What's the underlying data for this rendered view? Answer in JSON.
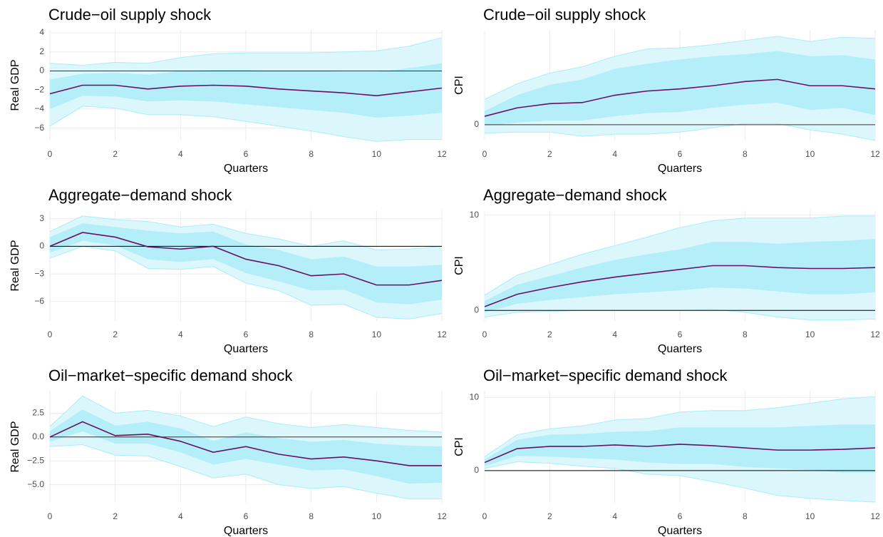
{
  "chart_data": [
    {
      "type": "line",
      "title": "Crude−oil supply shock",
      "xlabel": "Quarters",
      "ylabel": "Real GDP",
      "x": [
        0,
        1,
        2,
        3,
        4,
        5,
        6,
        7,
        8,
        9,
        10,
        11,
        12
      ],
      "xlim": [
        0,
        12
      ],
      "xticks": [
        0,
        2,
        4,
        6,
        8,
        10,
        12
      ],
      "ylim": [
        -7.3,
        4.3
      ],
      "yticks": [
        {
          "value": -6,
          "label": "−6"
        },
        {
          "value": -4,
          "label": "−4"
        },
        {
          "value": -2,
          "label": "−2"
        },
        0,
        2,
        4
      ],
      "grid": true,
      "hline": {
        "value": 0,
        "color": "#333333"
      },
      "outer_band": {
        "color": "#dcf7fc",
        "edge_color": "#a9edf7",
        "upper": [
          0.8,
          0.6,
          0.9,
          0.8,
          1.4,
          1.8,
          1.9,
          1.9,
          1.9,
          2.0,
          2.1,
          2.6,
          3.5
        ],
        "lower": [
          -5.8,
          -3.7,
          -3.9,
          -4.6,
          -4.6,
          -4.8,
          -5.3,
          -5.8,
          -6.3,
          -6.9,
          -7.4,
          -7.2,
          -7.2
        ]
      },
      "inner_band": {
        "color": "#b4eef9",
        "upper": [
          -0.9,
          -0.3,
          -0.2,
          -0.4,
          0,
          0.1,
          0.1,
          0,
          0,
          -0.1,
          -0.1,
          0.3,
          0.8
        ],
        "lower": [
          -4.0,
          -2.6,
          -2.7,
          -3.2,
          -3.1,
          -3.2,
          -3.5,
          -3.8,
          -4.1,
          -4.4,
          -4.9,
          -4.7,
          -4.4
        ]
      },
      "median": {
        "color": "#6b0f5f",
        "values": [
          -2.4,
          -1.5,
          -1.5,
          -1.9,
          -1.6,
          -1.5,
          -1.6,
          -1.9,
          -2.1,
          -2.3,
          -2.6,
          -2.2,
          -1.8
        ]
      }
    },
    {
      "type": "line",
      "title": "Crude−oil supply shock",
      "xlabel": "Quarters",
      "ylabel": "CPI",
      "x": [
        0,
        1,
        2,
        3,
        4,
        5,
        6,
        7,
        8,
        9,
        10,
        11,
        12
      ],
      "xlim": [
        0,
        12
      ],
      "xticks": [
        0,
        2,
        4,
        6,
        8,
        10,
        12
      ],
      "ylim": [
        -0.15,
        0.9
      ],
      "yticks": [
        0
      ],
      "grid": true,
      "hline": {
        "value": 0,
        "color": "#333333"
      },
      "outer_band": {
        "color": "#dcf7fc",
        "edge_color": "#a9edf7",
        "upper": [
          0.24,
          0.39,
          0.49,
          0.55,
          0.65,
          0.72,
          0.73,
          0.76,
          0.8,
          0.84,
          0.79,
          0.83,
          0.82
        ],
        "lower": [
          -0.08,
          -0.07,
          -0.07,
          -0.11,
          -0.09,
          -0.09,
          -0.07,
          -0.03,
          0.01,
          0.01,
          -0.05,
          -0.09,
          -0.15
        ]
      },
      "inner_band": {
        "color": "#b4eef9",
        "upper": [
          0.13,
          0.28,
          0.38,
          0.43,
          0.53,
          0.58,
          0.62,
          0.65,
          0.67,
          0.7,
          0.65,
          0.66,
          0.62
        ],
        "lower": [
          -0.01,
          0.02,
          0.04,
          0.04,
          0.08,
          0.11,
          0.12,
          0.16,
          0.19,
          0.21,
          0.14,
          0.16,
          0.09
        ]
      },
      "median": {
        "color": "#6b0f5f",
        "values": [
          0.08,
          0.16,
          0.2,
          0.21,
          0.28,
          0.32,
          0.34,
          0.37,
          0.41,
          0.43,
          0.37,
          0.37,
          0.34
        ]
      }
    },
    {
      "type": "line",
      "title": "Aggregate−demand shock",
      "xlabel": "Quarters",
      "ylabel": "Real GDP",
      "x": [
        0,
        1,
        2,
        3,
        4,
        5,
        6,
        7,
        8,
        9,
        10,
        11,
        12
      ],
      "xlim": [
        0,
        12
      ],
      "xticks": [
        0,
        2,
        4,
        6,
        8,
        10,
        12
      ],
      "ylim": [
        -8.1,
        3.9
      ],
      "yticks": [
        {
          "value": -6,
          "label": "−6"
        },
        {
          "value": -3,
          "label": "−3"
        },
        0,
        3
      ],
      "grid": true,
      "hline": {
        "value": 0,
        "color": "#000000"
      },
      "outer_band": {
        "color": "#dcf7fc",
        "edge_color": "#a9edf7",
        "upper": [
          1.6,
          3.3,
          2.9,
          2.7,
          2.1,
          2.4,
          1.4,
          0.8,
          0,
          0.6,
          -0.4,
          -0.3,
          0
        ],
        "lower": [
          -1.3,
          0,
          -0.5,
          -2.4,
          -2.5,
          -2.2,
          -4.0,
          -4.8,
          -6.4,
          -6.3,
          -7.7,
          -7.9,
          -7.3
        ]
      },
      "inner_band": {
        "color": "#b4eef9",
        "upper": [
          1.0,
          2.5,
          2.1,
          1.7,
          1.4,
          1.6,
          0.2,
          -0.4,
          -1.4,
          -1.1,
          -2.2,
          -2.2,
          -2.0
        ],
        "lower": [
          -0.7,
          0.6,
          0.1,
          -1.4,
          -1.7,
          -1.4,
          -2.9,
          -3.8,
          -4.8,
          -4.7,
          -6.1,
          -6.3,
          -5.8
        ]
      },
      "median": {
        "color": "#6b0f5f",
        "values": [
          0,
          1.5,
          1.0,
          -0.05,
          -0.3,
          0,
          -1.4,
          -2.1,
          -3.2,
          -3.0,
          -4.2,
          -4.2,
          -3.7
        ]
      }
    },
    {
      "type": "line",
      "title": "Aggregate−demand shock",
      "xlabel": "Quarters",
      "ylabel": "CPI",
      "x": [
        0,
        1,
        2,
        3,
        4,
        5,
        6,
        7,
        8,
        9,
        10,
        11,
        12
      ],
      "xlim": [
        0,
        12
      ],
      "xticks": [
        0,
        2,
        4,
        6,
        8,
        10,
        12
      ],
      "ylim": [
        -1.1,
        10.5
      ],
      "yticks": [
        0,
        10
      ],
      "grid": true,
      "hline": {
        "value": 0,
        "color": "#000000"
      },
      "outer_band": {
        "color": "#dcf7fc",
        "edge_color": "#a9edf7",
        "upper": [
          1.6,
          3.7,
          4.8,
          5.9,
          6.8,
          7.7,
          8.7,
          9.4,
          9.7,
          9.7,
          9.7,
          9.9,
          9.9
        ],
        "lower": [
          -0.7,
          -0.2,
          -0.1,
          0,
          0,
          0,
          0,
          0.1,
          -0.2,
          -0.7,
          -1.0,
          -1.0,
          -0.9
        ]
      },
      "inner_band": {
        "color": "#b4eef9",
        "upper": [
          1.0,
          2.7,
          3.6,
          4.5,
          5.3,
          5.9,
          6.4,
          7.2,
          7.2,
          7.0,
          7.2,
          7.3,
          7.5
        ],
        "lower": [
          -0.2,
          0.7,
          1.1,
          1.4,
          1.7,
          1.9,
          2.1,
          2.4,
          2.3,
          2.0,
          1.7,
          1.7,
          1.9
        ]
      },
      "median": {
        "color": "#6b0f5f",
        "values": [
          0.4,
          1.7,
          2.4,
          3.0,
          3.5,
          3.9,
          4.3,
          4.7,
          4.7,
          4.5,
          4.4,
          4.4,
          4.5
        ]
      }
    },
    {
      "type": "line",
      "title": "Oil−market−specific demand shock",
      "xlabel": "Quarters",
      "ylabel": "Real GDP",
      "x": [
        0,
        1,
        2,
        3,
        4,
        5,
        6,
        7,
        8,
        9,
        10,
        11,
        12
      ],
      "xlim": [
        0,
        12
      ],
      "xticks": [
        0,
        2,
        4,
        6,
        8,
        10,
        12
      ],
      "ylim": [
        -6.9,
        4.85
      ],
      "yticks": [
        {
          "value": -5,
          "label": "−5.0"
        },
        {
          "value": -2.5,
          "label": "−2.5"
        },
        {
          "value": 0,
          "label": "0.0"
        },
        2.5
      ],
      "grid": true,
      "hline": {
        "value": 0,
        "color": "#333333"
      },
      "outer_band": {
        "color": "#dcf7fc",
        "edge_color": "#a9edf7",
        "upper": [
          1.1,
          4.3,
          2.5,
          2.8,
          2.2,
          1.1,
          2.1,
          1.4,
          1.0,
          1.3,
          1.0,
          0.7,
          0.5
        ],
        "lower": [
          -1.0,
          -0.8,
          -1.9,
          -2.0,
          -3.1,
          -4.3,
          -3.9,
          -5.0,
          -5.4,
          -5.2,
          -5.9,
          -6.5,
          -6.5
        ]
      },
      "inner_band": {
        "color": "#b4eef9",
        "upper": [
          0.6,
          2.9,
          1.2,
          1.6,
          0.9,
          -0.4,
          0.5,
          -0.1,
          -0.5,
          -0.3,
          -0.7,
          -0.9,
          -1.0
        ],
        "lower": [
          -0.5,
          0.6,
          -0.7,
          -0.7,
          -1.6,
          -2.9,
          -2.3,
          -2.9,
          -3.5,
          -3.4,
          -4.1,
          -4.9,
          -4.8
        ]
      },
      "median": {
        "color": "#6b0f5f",
        "values": [
          0,
          1.6,
          0.15,
          0.3,
          -0.45,
          -1.6,
          -1.0,
          -1.8,
          -2.3,
          -2.1,
          -2.5,
          -3.0,
          -3.0
        ]
      }
    },
    {
      "type": "line",
      "title": "Oil−market−specific demand shock",
      "xlabel": "Quarters",
      "ylabel": "CPI",
      "x": [
        0,
        1,
        2,
        3,
        4,
        5,
        6,
        7,
        8,
        9,
        10,
        11,
        12
      ],
      "xlim": [
        0,
        12
      ],
      "xticks": [
        0,
        2,
        4,
        6,
        8,
        10,
        12
      ],
      "ylim": [
        -4.4,
        10.9
      ],
      "yticks": [
        0,
        10
      ],
      "grid": true,
      "hline": {
        "value": 0,
        "color": "#000000"
      },
      "outer_band": {
        "color": "#dcf7fc",
        "edge_color": "#a9edf7",
        "upper": [
          1.9,
          4.9,
          5.7,
          6.1,
          6.9,
          7.1,
          8.0,
          8.2,
          8.2,
          8.6,
          9.2,
          9.8,
          10.1
        ],
        "lower": [
          0.3,
          1.2,
          1.0,
          0.6,
          0.3,
          -0.5,
          -0.7,
          -1.5,
          -2.4,
          -3.4,
          -3.8,
          -4.1,
          -4.3
        ]
      },
      "inner_band": {
        "color": "#b4eef9",
        "upper": [
          1.5,
          4.2,
          4.9,
          5.0,
          5.3,
          5.4,
          5.9,
          5.9,
          5.9,
          5.9,
          6.1,
          6.3,
          6.3
        ],
        "lower": [
          0.6,
          2.0,
          1.9,
          1.7,
          1.5,
          1.1,
          0.9,
          0.9,
          0.5,
          0.3,
          0.1,
          -0.3,
          -0.3
        ]
      },
      "median": {
        "color": "#6b0f5f",
        "values": [
          1.1,
          3.0,
          3.3,
          3.3,
          3.5,
          3.3,
          3.6,
          3.4,
          3.1,
          2.8,
          2.8,
          2.9,
          3.1
        ]
      }
    }
  ]
}
